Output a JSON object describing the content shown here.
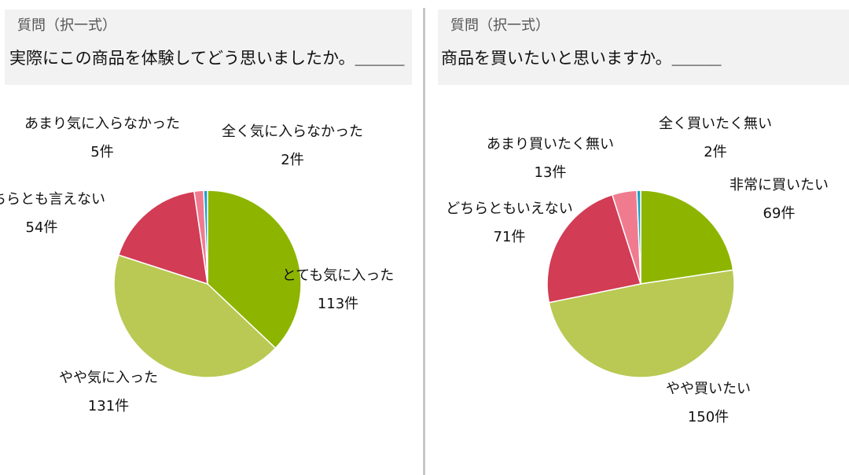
{
  "panels": [
    {
      "question_type": "質問（択一式）",
      "question_text": "実際にこの商品を体験してどう思いましたか。＿＿＿"
    },
    {
      "question_type": "質問（択一式）",
      "question_text": "商品を買いたいと思いますか。＿＿＿"
    }
  ],
  "chart_data": [
    {
      "type": "pie",
      "title": "",
      "start_angle": "12 o'clock, clockwise",
      "categories": [
        "とても気に入った",
        "やや気に入った",
        "どちらとも言えない",
        "あまり気に入らなかった",
        "全く気に入らなかった"
      ],
      "values": [
        113,
        131,
        54,
        5,
        2
      ],
      "value_labels": [
        "113件",
        "131件",
        "54件",
        "5件",
        "2件"
      ],
      "colors": [
        "#8db500",
        "#b9c954",
        "#d23c55",
        "#f07b8f",
        "#1aa0c8"
      ]
    },
    {
      "type": "pie",
      "title": "",
      "start_angle": "12 o'clock, clockwise",
      "categories": [
        "非常に買いたい",
        "やや買いたい",
        "どちらともいえない",
        "あまり買いたく無い",
        "全く買いたく無い"
      ],
      "values": [
        69,
        150,
        71,
        13,
        2
      ],
      "value_labels": [
        "69件",
        "150件",
        "71件",
        "13件",
        "2件"
      ],
      "colors": [
        "#8db500",
        "#b9c954",
        "#d23c55",
        "#f07b8f",
        "#1aa0c8"
      ]
    }
  ]
}
